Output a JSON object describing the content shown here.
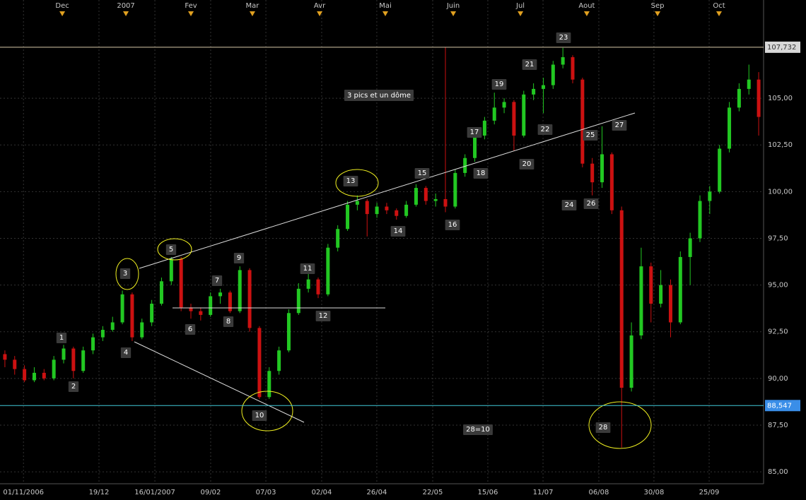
{
  "chart_data": {
    "type": "candlestick",
    "up_color": "#22c822",
    "down_color": "#cc1111",
    "ylim": [
      84.36,
      110.26
    ],
    "yticks": [
      {
        "value": 85,
        "label": "85,00"
      },
      {
        "value": 87.5,
        "label": "87,50"
      },
      {
        "value": 90,
        "label": "90,00"
      },
      {
        "value": 92.5,
        "label": "92,50"
      },
      {
        "value": 95,
        "label": "95,00"
      },
      {
        "value": 97.5,
        "label": "97,50"
      },
      {
        "value": 100,
        "label": "100,00"
      },
      {
        "value": 102.5,
        "label": "102,50"
      },
      {
        "value": 105,
        "label": "105,00"
      }
    ],
    "xlim": [
      -0.5,
      77.5
    ],
    "xticks": [
      {
        "value": 1.9,
        "label": "01/11/2006"
      },
      {
        "value": 9.61,
        "label": "19/12"
      },
      {
        "value": 15.32,
        "label": "16/01/2007"
      },
      {
        "value": 21.02,
        "label": "09/02"
      },
      {
        "value": 26.66,
        "label": "07/03"
      },
      {
        "value": 32.36,
        "label": "02/04"
      },
      {
        "value": 37.99,
        "label": "26/04"
      },
      {
        "value": 43.7,
        "label": "22/05"
      },
      {
        "value": 49.33,
        "label": "15/06"
      },
      {
        "value": 54.97,
        "label": "11/07"
      },
      {
        "value": 60.67,
        "label": "06/08"
      },
      {
        "value": 66.3,
        "label": "30/08"
      },
      {
        "value": 71.94,
        "label": "25/09"
      }
    ],
    "x2ticks": [
      {
        "value": 5.86,
        "label": "Dec"
      },
      {
        "value": 12.36,
        "label": "2007"
      },
      {
        "value": 19,
        "label": "Fev"
      },
      {
        "value": 25.28,
        "label": "Mar"
      },
      {
        "value": 32.15,
        "label": "Avr"
      },
      {
        "value": 38.86,
        "label": "Mai"
      },
      {
        "value": 45.8,
        "label": "Juin"
      },
      {
        "value": 52.66,
        "label": "Jul"
      },
      {
        "value": 59.44,
        "label": "Aout"
      },
      {
        "value": 66.67,
        "label": "Sep"
      },
      {
        "value": 72.95,
        "label": "Oct"
      }
    ],
    "levels": [
      {
        "value": 107.732,
        "label": "107,732",
        "color": "#d8c8a8"
      },
      {
        "value": 88.547,
        "label": "88,547",
        "color": "#40c8d8"
      }
    ],
    "annotations": [
      "1",
      "2",
      "3",
      "4",
      "5",
      "6",
      "7",
      "8",
      "9",
      "10",
      "11",
      "12",
      "13",
      "14",
      "15",
      "16",
      "17",
      "18",
      "19",
      "20",
      "21",
      "22",
      "23",
      "24",
      "25",
      "26",
      "27",
      "28",
      "3 pics et un dôme",
      "28=10"
    ],
    "candles": [
      [
        91.3,
        91.5,
        90.6,
        91.0
      ],
      [
        91.0,
        91.2,
        90.2,
        90.5
      ],
      [
        90.5,
        90.7,
        89.8,
        89.9
      ],
      [
        89.9,
        90.6,
        89.8,
        90.3
      ],
      [
        90.3,
        90.5,
        89.9,
        90.0
      ],
      [
        90.0,
        91.2,
        89.9,
        91.0
      ],
      [
        91.0,
        91.8,
        90.8,
        91.6
      ],
      [
        91.6,
        91.7,
        90.0,
        90.4
      ],
      [
        90.4,
        91.7,
        90.3,
        91.5
      ],
      [
        91.5,
        92.4,
        91.3,
        92.2
      ],
      [
        92.2,
        92.8,
        92.0,
        92.6
      ],
      [
        92.6,
        93.3,
        92.5,
        93.0
      ],
      [
        93.0,
        94.7,
        92.9,
        94.5
      ],
      [
        94.5,
        94.6,
        92.0,
        92.2
      ],
      [
        92.2,
        93.2,
        92.1,
        93.0
      ],
      [
        93.0,
        94.2,
        92.8,
        94.0
      ],
      [
        94.0,
        95.4,
        93.9,
        95.2
      ],
      [
        95.2,
        96.5,
        95.0,
        96.4
      ],
      [
        96.4,
        96.5,
        93.6,
        93.8
      ],
      [
        93.8,
        94.0,
        93.2,
        93.6
      ],
      [
        93.6,
        93.8,
        93.1,
        93.4
      ],
      [
        93.4,
        94.6,
        93.3,
        94.4
      ],
      [
        94.4,
        94.8,
        94.0,
        94.6
      ],
      [
        94.6,
        94.7,
        93.5,
        93.6
      ],
      [
        93.6,
        96.0,
        93.5,
        95.8
      ],
      [
        95.8,
        95.9,
        92.5,
        92.7
      ],
      [
        92.7,
        92.8,
        88.9,
        89.0
      ],
      [
        89.0,
        90.6,
        88.9,
        90.4
      ],
      [
        90.4,
        91.7,
        90.2,
        91.5
      ],
      [
        91.5,
        93.7,
        91.4,
        93.5
      ],
      [
        93.5,
        95.1,
        93.4,
        94.8
      ],
      [
        94.8,
        95.6,
        94.6,
        95.3
      ],
      [
        95.3,
        95.4,
        94.3,
        94.5
      ],
      [
        94.5,
        97.2,
        94.4,
        97.0
      ],
      [
        97.0,
        98.2,
        96.8,
        98.0
      ],
      [
        98.0,
        99.5,
        97.9,
        99.3
      ],
      [
        99.3,
        99.8,
        99.0,
        99.5
      ],
      [
        99.5,
        99.6,
        97.6,
        98.8
      ],
      [
        98.8,
        99.4,
        98.6,
        99.2
      ],
      [
        99.2,
        99.4,
        98.8,
        99.0
      ],
      [
        99.0,
        99.1,
        98.5,
        98.7
      ],
      [
        98.7,
        99.5,
        98.6,
        99.3
      ],
      [
        99.3,
        100.4,
        99.2,
        100.2
      ],
      [
        100.2,
        100.3,
        99.3,
        99.5
      ],
      [
        99.5,
        99.9,
        99.2,
        99.6
      ],
      [
        99.6,
        107.73,
        98.9,
        99.2
      ],
      [
        99.2,
        101.2,
        99.1,
        101.0
      ],
      [
        101.0,
        102.0,
        100.8,
        101.8
      ],
      [
        101.8,
        103.2,
        101.6,
        103.0
      ],
      [
        103.0,
        104.0,
        102.8,
        103.8
      ],
      [
        103.8,
        105.3,
        103.6,
        104.5
      ],
      [
        104.5,
        105.0,
        104.2,
        104.8
      ],
      [
        104.8,
        104.9,
        102.2,
        103.0
      ],
      [
        103.0,
        105.4,
        102.9,
        105.2
      ],
      [
        105.2,
        105.8,
        104.9,
        105.5
      ],
      [
        105.5,
        106.1,
        104.2,
        105.7
      ],
      [
        105.7,
        107.0,
        105.5,
        106.8
      ],
      [
        106.8,
        107.7,
        106.6,
        107.2
      ],
      [
        107.2,
        107.3,
        105.8,
        106.0
      ],
      [
        106.0,
        106.1,
        101.3,
        101.5
      ],
      [
        101.5,
        101.8,
        99.8,
        100.5
      ],
      [
        100.5,
        103.5,
        100.2,
        102.0
      ],
      [
        102.0,
        102.1,
        98.8,
        99.0
      ],
      [
        99.0,
        99.2,
        86.3,
        89.5
      ],
      [
        89.5,
        93.0,
        89.3,
        92.3
      ],
      [
        92.3,
        97.0,
        92.1,
        96.0
      ],
      [
        96.0,
        96.2,
        93.0,
        94.0
      ],
      [
        94.0,
        95.8,
        93.8,
        95.0
      ],
      [
        95.0,
        95.3,
        92.2,
        93.0
      ],
      [
        93.0,
        96.8,
        92.9,
        96.5
      ],
      [
        96.5,
        97.8,
        95.0,
        97.5
      ],
      [
        97.5,
        99.8,
        97.3,
        99.5
      ],
      [
        99.5,
        100.3,
        98.8,
        100.0
      ],
      [
        100.0,
        102.5,
        99.9,
        102.3
      ],
      [
        102.3,
        104.8,
        102.1,
        104.5
      ],
      [
        104.5,
        105.8,
        104.3,
        105.5
      ],
      [
        105.5,
        106.8,
        105.2,
        106.0
      ],
      [
        106.0,
        106.4,
        103.0,
        104.0
      ]
    ]
  }
}
